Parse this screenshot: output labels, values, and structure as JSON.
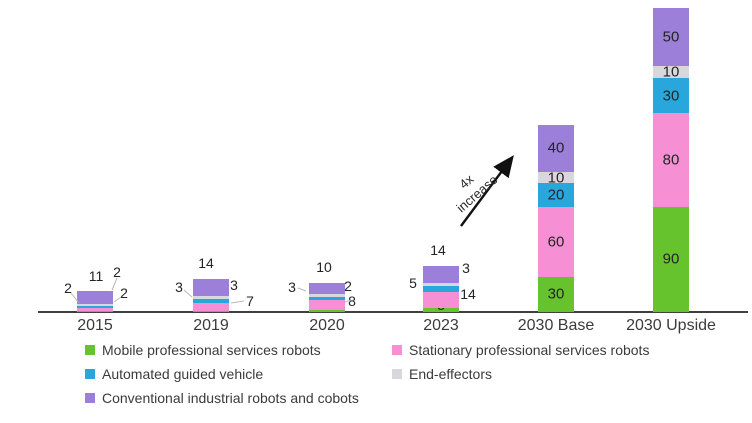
{
  "chart_data": {
    "type": "bar",
    "stacked": true,
    "title": "",
    "xlabel": "",
    "ylabel": "",
    "grid": false,
    "legend_position": "bottom",
    "ylim": [
      0,
      260
    ],
    "categories": [
      "2015",
      "2019",
      "2020",
      "2023",
      "2030 Base",
      "2030 Upside"
    ],
    "series": [
      {
        "name": "Mobile professional services robots",
        "color": "#66c32e",
        "values": [
          1,
          1,
          2,
          3,
          30,
          90
        ]
      },
      {
        "name": "Stationary professional services robots",
        "color": "#f78fd4",
        "values": [
          2,
          7,
          8,
          14,
          60,
          80
        ]
      },
      {
        "name": "Automated guided vehicle",
        "color": "#29a7dc",
        "values": [
          2,
          3,
          3,
          5,
          20,
          30
        ]
      },
      {
        "name": "End-effectors",
        "color": "#d8d7db",
        "values": [
          2,
          3,
          2,
          3,
          10,
          10
        ]
      },
      {
        "name": "Conventional industrial robots and cobots",
        "color": "#9b7fd8",
        "values": [
          11,
          14,
          10,
          14,
          40,
          50
        ]
      }
    ],
    "annotation": {
      "line1": "4x",
      "line2": "increase"
    },
    "totals": {
      "2015": 18,
      "2019": 28,
      "2020": 25,
      "2023": 39,
      "2030 Base": 160,
      "2030 Upside": 260
    }
  },
  "colors": {
    "axis": "#3f3f3f",
    "arrow": "#111111",
    "leader": "#b9b9b9",
    "label_text": "#242424"
  }
}
